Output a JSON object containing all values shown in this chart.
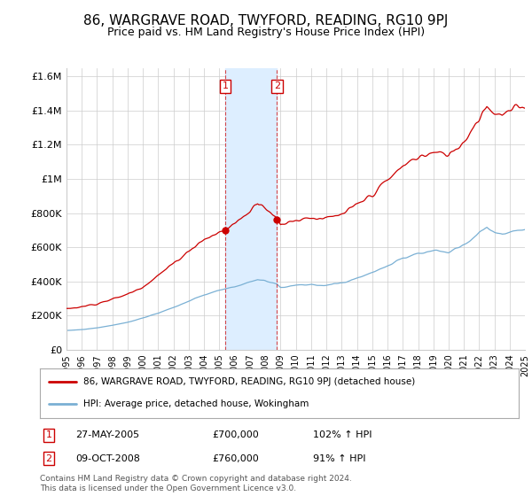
{
  "title": "86, WARGRAVE ROAD, TWYFORD, READING, RG10 9PJ",
  "subtitle": "Price paid vs. HM Land Registry's House Price Index (HPI)",
  "title_fontsize": 11,
  "subtitle_fontsize": 9,
  "ylim": [
    0,
    1650000
  ],
  "yticks": [
    0,
    200000,
    400000,
    600000,
    800000,
    1000000,
    1200000,
    1400000,
    1600000
  ],
  "ytick_labels": [
    "£0",
    "£200K",
    "£400K",
    "£600K",
    "£800K",
    "£1M",
    "£1.2M",
    "£1.4M",
    "£1.6M"
  ],
  "x_start_year": 1995,
  "x_end_year": 2025,
  "sale1_year": 2005.38,
  "sale1_price": 700000,
  "sale1_label": "1",
  "sale1_date": "27-MAY-2005",
  "sale1_display": "£700,000",
  "sale1_hpi": "102% ↑ HPI",
  "sale2_year": 2008.77,
  "sale2_price": 760000,
  "sale2_label": "2",
  "sale2_date": "09-OCT-2008",
  "sale2_display": "£760,000",
  "sale2_hpi": "91% ↑ HPI",
  "red_line_color": "#cc0000",
  "blue_line_color": "#7ab0d4",
  "shade_color": "#ddeeff",
  "marker_box_color": "#cc0000",
  "background_color": "#ffffff",
  "grid_color": "#cccccc",
  "legend_label_red": "86, WARGRAVE ROAD, TWYFORD, READING, RG10 9PJ (detached house)",
  "legend_label_blue": "HPI: Average price, detached house, Wokingham",
  "footer_text": "Contains HM Land Registry data © Crown copyright and database right 2024.\nThis data is licensed under the Open Government Licence v3.0."
}
